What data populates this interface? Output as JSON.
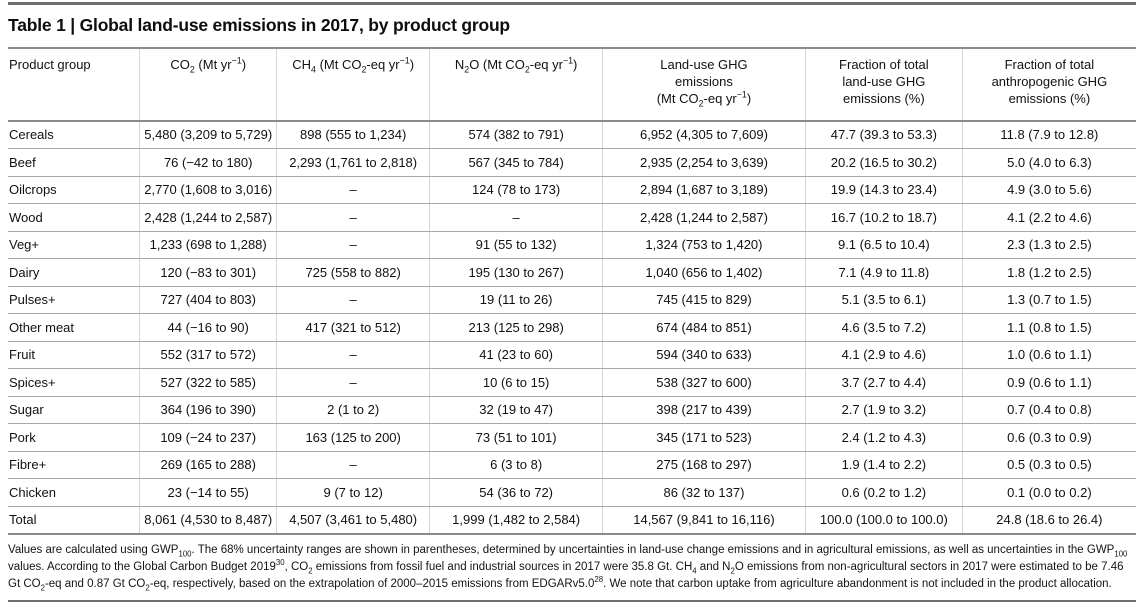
{
  "title": "Table 1 | Global land-use emissions in 2017, by product group",
  "table": {
    "headers": [
      "Product group",
      "CO~2~ (Mt yr^−1^)",
      "CH~4~ (Mt CO~2~-eq yr^−1^)",
      "N~2~O (Mt CO~2~-eq yr^−1^)",
      "Land-use GHG\nemissions\n(Mt CO~2~-eq yr^−1^)",
      "Fraction of total\nland-use GHG\nemissions (%)",
      "Fraction of total\nanthropogenic GHG\nemissions (%)"
    ],
    "rows": [
      [
        "Cereals",
        "5,480 (3,209 to 5,729)",
        "898 (555 to 1,234)",
        "574 (382 to 791)",
        "6,952 (4,305 to 7,609)",
        "47.7 (39.3 to 53.3)",
        "11.8 (7.9 to 12.8)"
      ],
      [
        "Beef",
        "76 (−42 to 180)",
        "2,293 (1,761 to 2,818)",
        "567 (345 to 784)",
        "2,935 (2,254 to 3,639)",
        "20.2 (16.5 to 30.2)",
        "5.0 (4.0 to 6.3)"
      ],
      [
        "Oilcrops",
        "2,770 (1,608 to 3,016)",
        "–",
        "124 (78 to 173)",
        "2,894 (1,687 to 3,189)",
        "19.9 (14.3 to 23.4)",
        "4.9 (3.0 to 5.6)"
      ],
      [
        "Wood",
        "2,428 (1,244 to 2,587)",
        "–",
        "–",
        "2,428 (1,244 to 2,587)",
        "16.7 (10.2 to 18.7)",
        "4.1 (2.2 to 4.6)"
      ],
      [
        "Veg+",
        "1,233 (698 to 1,288)",
        "–",
        "91 (55 to 132)",
        "1,324 (753 to 1,420)",
        "9.1 (6.5 to 10.4)",
        "2.3 (1.3 to 2.5)"
      ],
      [
        "Dairy",
        "120 (−83 to 301)",
        "725 (558 to 882)",
        "195 (130 to 267)",
        "1,040 (656 to 1,402)",
        "7.1 (4.9 to 11.8)",
        "1.8 (1.2 to 2.5)"
      ],
      [
        "Pulses+",
        "727 (404 to 803)",
        "–",
        "19 (11 to 26)",
        "745 (415 to 829)",
        "5.1 (3.5 to 6.1)",
        "1.3 (0.7 to 1.5)"
      ],
      [
        "Other meat",
        "44 (−16 to 90)",
        "417 (321 to 512)",
        "213 (125 to 298)",
        "674 (484 to 851)",
        "4.6 (3.5 to 7.2)",
        "1.1 (0.8 to 1.5)"
      ],
      [
        "Fruit",
        "552 (317 to 572)",
        "–",
        "41 (23 to 60)",
        "594 (340 to 633)",
        "4.1 (2.9 to 4.6)",
        "1.0 (0.6 to 1.1)"
      ],
      [
        "Spices+",
        "527 (322 to 585)",
        "–",
        "10 (6 to 15)",
        "538 (327 to 600)",
        "3.7 (2.7 to 4.4)",
        "0.9 (0.6 to 1.1)"
      ],
      [
        "Sugar",
        "364 (196 to 390)",
        "2 (1 to 2)",
        "32 (19 to 47)",
        "398 (217 to 439)",
        "2.7 (1.9 to 3.2)",
        "0.7 (0.4 to 0.8)"
      ],
      [
        "Pork",
        "109 (−24 to 237)",
        "163 (125 to 200)",
        "73 (51 to 101)",
        "345 (171 to 523)",
        "2.4 (1.2 to 4.3)",
        "0.6 (0.3 to 0.9)"
      ],
      [
        "Fibre+",
        "269 (165 to 288)",
        "–",
        "6 (3 to 8)",
        "275 (168 to 297)",
        "1.9 (1.4 to 2.2)",
        "0.5 (0.3 to 0.5)"
      ],
      [
        "Chicken",
        "23 (−14 to 55)",
        "9 (7 to 12)",
        "54 (36 to 72)",
        "86 (32 to 137)",
        "0.6 (0.2 to 1.2)",
        "0.1 (0.0 to 0.2)"
      ],
      [
        "Total",
        "8,061 (4,530 to 8,487)",
        "4,507 (3,461 to 5,480)",
        "1,999 (1,482 to 2,584)",
        "14,567 (9,841 to 16,116)",
        "100.0 (100.0 to 100.0)",
        "24.8 (18.6 to 26.4)"
      ]
    ]
  },
  "footnote": "Values are calculated using GWP~100~. The 68% uncertainty ranges are shown in parentheses, determined by uncertainties in land-use change emissions and in agricultural emissions, as well as uncertainties in the GWP~100~ values. According to the Global Carbon Budget 2019^30^, CO~2~ emissions from fossil fuel and industrial sources in 2017 were 35.8 Gt. CH~4~ and N~2~O emissions from non-agricultural sectors in 2017 were estimated to be 7.46 Gt CO~2~-eq and 0.87 Gt CO~2~-eq, respectively, based on the extrapolation of 2000–2015 emissions from EDGARv5.0^28^. We note that carbon uptake from agriculture abandonment is not included in the product allocation."
}
